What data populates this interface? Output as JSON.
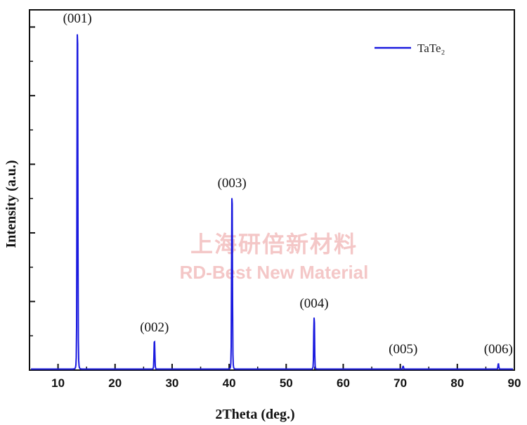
{
  "chart_data": {
    "type": "line",
    "title": "",
    "xlabel": "2Theta (deg.)",
    "ylabel": "Intensity (a.u.)",
    "xlim": [
      5,
      90
    ],
    "ylim": [
      0,
      1.05
    ],
    "x_ticks": [
      10,
      20,
      30,
      40,
      50,
      60,
      70,
      80,
      90
    ],
    "y_tick_labels_shown": false,
    "grid": false,
    "legend": {
      "position": "top-right",
      "entries": [
        "TaTe₂"
      ]
    },
    "series": [
      {
        "name": "TaTe₂",
        "color": "#1a1adf",
        "peaks": [
          {
            "x": 13.4,
            "y": 0.98
          },
          {
            "x": 26.9,
            "y": 0.08
          },
          {
            "x": 40.5,
            "y": 0.5
          },
          {
            "x": 54.9,
            "y": 0.15
          },
          {
            "x": 70.5,
            "y": 0.008
          },
          {
            "x": 87.2,
            "y": 0.015
          }
        ]
      }
    ],
    "annotations": [
      {
        "text": "(001)",
        "x": 13.4
      },
      {
        "text": "(002)",
        "x": 26.9
      },
      {
        "text": "(003)",
        "x": 40.5
      },
      {
        "text": "(004)",
        "x": 54.9
      },
      {
        "text": "(005)",
        "x": 70.5
      },
      {
        "text": "(006)",
        "x": 87.2
      }
    ]
  },
  "watermark": {
    "line1": "上海研倍新材料",
    "line2": "RD-Best New Material"
  }
}
